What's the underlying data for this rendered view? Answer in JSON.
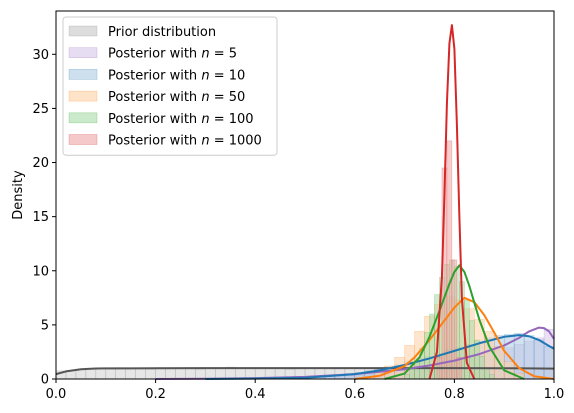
{
  "chart_data": {
    "type": "histogram+kde",
    "title": "",
    "xlabel": "",
    "ylabel": "Density",
    "xlim": [
      0.0,
      1.0
    ],
    "ylim": [
      0,
      34
    ],
    "xticks": [
      "0.0",
      "0.2",
      "0.4",
      "0.6",
      "0.8",
      "1.0"
    ],
    "yticks": [
      "0",
      "5",
      "10",
      "15",
      "20",
      "25",
      "30"
    ],
    "grid": false,
    "legend_position": "top-left",
    "series": [
      {
        "name": "Prior distribution",
        "legend_prefix": "Prior distribution",
        "legend_n": "",
        "color": "#7f7f7f",
        "fill": "#c7c7c7",
        "line": "#555555",
        "hist_start": 0.0,
        "hist_step": 0.02,
        "hist_values": [
          0.75,
          0.8,
          0.85,
          1.0,
          0.95,
          0.9,
          1.05,
          0.95,
          1.0,
          0.9,
          1.05,
          0.95,
          1.0,
          1.05,
          0.9,
          1.0,
          0.95,
          1.1,
          0.95,
          1.0,
          1.05,
          0.95,
          1.0,
          0.9,
          1.0,
          1.05,
          0.95,
          1.0,
          1.0,
          0.95,
          1.05,
          1.0,
          0.95,
          1.0,
          1.05,
          0.9,
          1.0,
          1.05,
          0.95,
          1.0,
          1.05,
          0.95,
          1.0,
          0.95,
          1.05,
          1.0,
          0.95,
          1.0,
          0.9,
          0.95
        ],
        "kde_x": [
          0.0,
          0.02,
          0.05,
          0.08,
          0.1,
          0.2,
          0.3,
          0.4,
          0.5,
          0.6,
          0.7,
          0.8,
          0.9,
          0.95,
          1.0
        ],
        "kde_y": [
          0.45,
          0.7,
          0.9,
          0.97,
          0.98,
          0.99,
          1.0,
          1.0,
          1.0,
          1.0,
          1.0,
          1.0,
          0.99,
          0.98,
          0.96
        ]
      },
      {
        "name": "Posterior with n = 5",
        "legend_prefix": "Posterior with ",
        "legend_n": "5",
        "color": "#9467bd",
        "fill": "#d7c6ea",
        "line": "#9467bd",
        "hist_start": 0.5,
        "hist_step": 0.02,
        "hist_values": [
          0.1,
          0.15,
          0.2,
          0.25,
          0.3,
          0.35,
          0.45,
          0.55,
          0.7,
          0.8,
          0.95,
          1.1,
          1.3,
          1.5,
          1.7,
          1.9,
          2.1,
          2.3,
          2.5,
          2.7,
          2.9,
          3.2,
          3.5,
          3.8,
          4.6
        ],
        "kde_x": [
          0.2,
          0.3,
          0.4,
          0.5,
          0.6,
          0.7,
          0.75,
          0.8,
          0.85,
          0.9,
          0.93,
          0.95,
          0.97,
          0.98,
          0.99,
          1.0
        ],
        "kde_y": [
          0.0,
          0.02,
          0.08,
          0.2,
          0.45,
          0.9,
          1.25,
          1.7,
          2.3,
          3.1,
          3.8,
          4.4,
          4.75,
          4.7,
          4.4,
          3.7
        ]
      },
      {
        "name": "Posterior with n = 10",
        "legend_prefix": "Posterior with ",
        "legend_n": "10",
        "color": "#1f77b4",
        "fill": "#aecbe3",
        "line": "#1f77b4",
        "hist_start": 0.52,
        "hist_step": 0.02,
        "hist_values": [
          0.2,
          0.3,
          0.4,
          0.5,
          0.6,
          0.75,
          0.9,
          1.1,
          1.3,
          1.6,
          1.9,
          2.1,
          2.4,
          2.7,
          2.9,
          3.2,
          3.5,
          3.8,
          4.0,
          4.1,
          4.2,
          4.0,
          3.6,
          3.0
        ],
        "kde_x": [
          0.3,
          0.4,
          0.5,
          0.6,
          0.65,
          0.7,
          0.75,
          0.8,
          0.85,
          0.9,
          0.93,
          0.95,
          0.97,
          0.99,
          1.0
        ],
        "kde_y": [
          0.0,
          0.03,
          0.12,
          0.45,
          0.8,
          1.3,
          1.9,
          2.6,
          3.3,
          3.9,
          4.05,
          3.95,
          3.6,
          3.05,
          2.8
        ]
      },
      {
        "name": "Posterior with n = 50",
        "legend_prefix": "Posterior with ",
        "legend_n": "50",
        "color": "#ff7f0e",
        "fill": "#ffd0a4",
        "line": "#ff7f0e",
        "hist_start": 0.62,
        "hist_step": 0.02,
        "hist_values": [
          0.2,
          0.6,
          1.2,
          2.0,
          3.1,
          4.4,
          5.8,
          6.9,
          7.6,
          7.3,
          6.5,
          5.5,
          4.4,
          3.0,
          1.6,
          0.5
        ],
        "kde_x": [
          0.6,
          0.65,
          0.7,
          0.72,
          0.75,
          0.78,
          0.8,
          0.82,
          0.84,
          0.86,
          0.88,
          0.9,
          0.93,
          0.96,
          1.0
        ],
        "kde_y": [
          0.0,
          0.3,
          1.2,
          2.0,
          3.6,
          5.4,
          6.6,
          7.5,
          7.1,
          5.9,
          4.3,
          2.6,
          1.0,
          0.25,
          0.0
        ]
      },
      {
        "name": "Posterior with n = 100",
        "legend_prefix": "Posterior with ",
        "legend_n": "100",
        "color": "#2ca02c",
        "fill": "#a8dba8",
        "line": "#2ca02c",
        "hist_start": 0.7,
        "hist_step": 0.01,
        "hist_values": [
          0.4,
          0.9,
          1.7,
          2.8,
          4.3,
          6.0,
          7.8,
          9.4,
          10.6,
          11.0,
          10.4,
          9.0,
          7.3,
          5.4,
          3.6,
          2.1,
          1.0,
          0.4
        ],
        "kde_x": [
          0.66,
          0.7,
          0.73,
          0.75,
          0.77,
          0.79,
          0.8,
          0.81,
          0.82,
          0.83,
          0.85,
          0.87,
          0.9,
          0.94
        ],
        "kde_y": [
          0.0,
          0.5,
          2.0,
          3.9,
          6.3,
          8.8,
          9.9,
          10.5,
          9.9,
          8.6,
          5.5,
          3.0,
          0.8,
          0.0
        ]
      },
      {
        "name": "Posterior with n = 1000",
        "legend_prefix": "Posterior with ",
        "legend_n": "1000",
        "color": "#d62728",
        "fill": "#eea5a5",
        "line": "#d62728",
        "hist_start": 0.765,
        "hist_step": 0.01,
        "hist_values": [
          2.0,
          19.5,
          22.0,
          11.0,
          2.0
        ],
        "kde_x": [
          0.75,
          0.765,
          0.775,
          0.78,
          0.785,
          0.79,
          0.795,
          0.8,
          0.805,
          0.81,
          0.815,
          0.825,
          0.84
        ],
        "kde_y": [
          0.0,
          2.5,
          9.5,
          17.0,
          25.5,
          31.0,
          32.7,
          30.5,
          23.5,
          15.0,
          7.5,
          1.5,
          0.0
        ]
      }
    ]
  }
}
